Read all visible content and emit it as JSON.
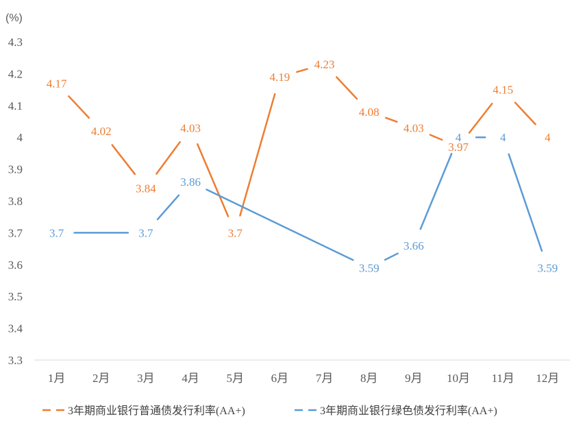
{
  "chart_data": {
    "type": "line",
    "unit_label": "(%)",
    "categories": [
      "1月",
      "2月",
      "3月",
      "4月",
      "5月",
      "6月",
      "7月",
      "8月",
      "9月",
      "10月",
      "11月",
      "12月"
    ],
    "ylim": [
      3.3,
      4.3
    ],
    "yticks": [
      "3.3",
      "3.4",
      "3.5",
      "3.6",
      "3.7",
      "3.8",
      "3.9",
      "4",
      "4.1",
      "4.2",
      "4.3"
    ],
    "grid": false,
    "legend_position": "bottom",
    "series": [
      {
        "name": "3年期商业银行普通债发行利率(AA+)",
        "color": "#ED7D31",
        "values": [
          4.17,
          4.02,
          3.84,
          4.03,
          3.7,
          4.19,
          4.23,
          4.08,
          4.03,
          3.97,
          4.15,
          4
        ],
        "labels": [
          "4.17",
          "4.02",
          "3.84",
          "4.03",
          "3.7",
          "4.19",
          "4.23",
          "4.08",
          "4.03",
          "3.97",
          "4.15",
          "4"
        ]
      },
      {
        "name": "3年期商业银行绿色债发行利率(AA+)",
        "color": "#5B9BD5",
        "values": [
          3.7,
          null,
          3.7,
          3.86,
          null,
          null,
          null,
          3.59,
          3.66,
          4,
          4,
          3.59
        ],
        "labels": [
          "3.7",
          "",
          "3.7",
          "3.86",
          "",
          "",
          "",
          "3.59",
          "3.66",
          "4",
          "4",
          "3.59"
        ]
      }
    ]
  }
}
